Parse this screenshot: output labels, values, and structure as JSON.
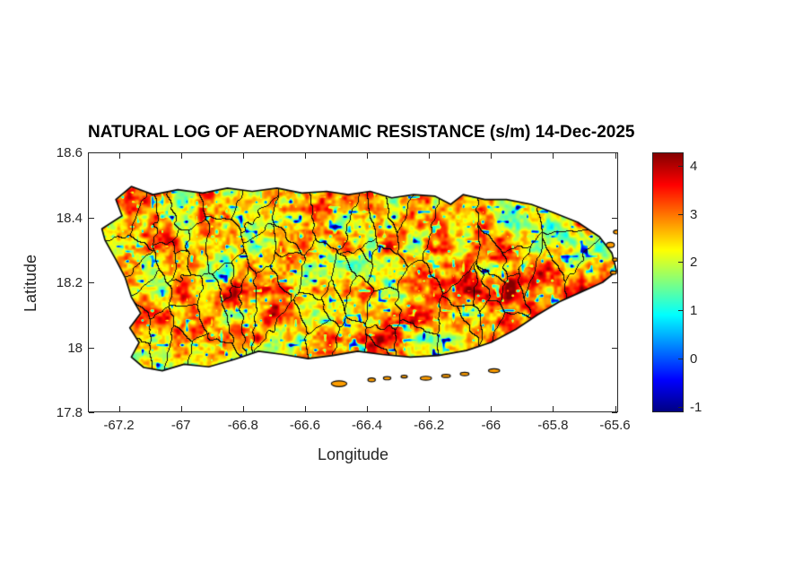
{
  "title": "NATURAL LOG OF AERODYNAMIC RESISTANCE (s/m) 14-Dec-2025",
  "axes": {
    "xlabel": "Longitude",
    "ylabel": "Latitude",
    "xlim": [
      -67.3,
      -65.59
    ],
    "ylim": [
      17.8,
      18.6
    ],
    "xticks": [
      -67.2,
      -67,
      -66.8,
      -66.6,
      -66.4,
      -66.2,
      -66,
      -65.8,
      -65.6
    ],
    "xtick_labels": [
      "-67.2",
      "-67",
      "-66.8",
      "-66.6",
      "-66.4",
      "-66.2",
      "-66",
      "-65.8",
      "-65.6"
    ],
    "yticks": [
      18.6,
      18.4,
      18.2,
      18,
      17.8
    ],
    "ytick_labels": [
      "18.6",
      "18.4",
      "18.2",
      "18",
      "17.8"
    ],
    "axis_color": "#262626",
    "background": "#ffffff"
  },
  "colorbar": {
    "clim": [
      -1.12,
      4.28
    ],
    "ticks": [
      4,
      3,
      2,
      1,
      0,
      -1
    ],
    "tick_labels": [
      "4",
      "3",
      "2",
      "1",
      "0",
      "-1"
    ],
    "colormap": "jet",
    "stops": [
      {
        "t": 0.0,
        "color": "#000080"
      },
      {
        "t": 0.125,
        "color": "#0000ff"
      },
      {
        "t": 0.375,
        "color": "#00ffff"
      },
      {
        "t": 0.625,
        "color": "#ffff00"
      },
      {
        "t": 0.875,
        "color": "#ff0000"
      },
      {
        "t": 1.0,
        "color": "#800000"
      }
    ]
  },
  "chart_data": {
    "type": "heatmap",
    "title": "NATURAL LOG OF AERODYNAMIC RESISTANCE (s/m) 14-Dec-2025",
    "variable": "natural log of aerodynamic resistance",
    "units": "s/m",
    "date": "14-Dec-2025",
    "region": "Puerto Rico (main island with municipality boundaries and offshore cays)",
    "xlabel": "Longitude",
    "ylabel": "Latitude",
    "xlim": [
      -67.3,
      -65.59
    ],
    "ylim": [
      17.8,
      18.6
    ],
    "value_range": [
      -1.12,
      4.28
    ],
    "value_distribution": "mostly 2.2-3.6 (orange/red) with yellow-green patches near 1.5-2.2, cyan patches near 0.9-1.4 and sparse blue speckles below 0",
    "boundary_color": "#0b0b0b",
    "coastline": [
      [
        -67.19,
        18.405
      ],
      [
        -67.21,
        18.455
      ],
      [
        -67.16,
        18.495
      ],
      [
        -67.09,
        18.47
      ],
      [
        -67.01,
        18.485
      ],
      [
        -66.93,
        18.475
      ],
      [
        -66.85,
        18.49
      ],
      [
        -66.77,
        18.48
      ],
      [
        -66.69,
        18.49
      ],
      [
        -66.61,
        18.475
      ],
      [
        -66.53,
        18.48
      ],
      [
        -66.46,
        18.47
      ],
      [
        -66.39,
        18.48
      ],
      [
        -66.32,
        18.46
      ],
      [
        -66.25,
        18.47
      ],
      [
        -66.18,
        18.465
      ],
      [
        -66.13,
        18.44
      ],
      [
        -66.09,
        18.47
      ],
      [
        -66.02,
        18.455
      ],
      [
        -65.95,
        18.455
      ],
      [
        -65.87,
        18.44
      ],
      [
        -65.8,
        18.415
      ],
      [
        -65.72,
        18.385
      ],
      [
        -65.65,
        18.34
      ],
      [
        -65.61,
        18.29
      ],
      [
        -65.595,
        18.235
      ],
      [
        -65.64,
        18.2
      ],
      [
        -65.71,
        18.17
      ],
      [
        -65.78,
        18.14
      ],
      [
        -65.85,
        18.1
      ],
      [
        -65.92,
        18.055
      ],
      [
        -66.0,
        18.015
      ],
      [
        -66.08,
        17.99
      ],
      [
        -66.17,
        17.975
      ],
      [
        -66.26,
        17.97
      ],
      [
        -66.35,
        17.978
      ],
      [
        -66.43,
        17.988
      ],
      [
        -66.51,
        17.975
      ],
      [
        -66.59,
        17.965
      ],
      [
        -66.67,
        17.978
      ],
      [
        -66.75,
        17.988
      ],
      [
        -66.83,
        17.962
      ],
      [
        -66.91,
        17.94
      ],
      [
        -66.99,
        17.948
      ],
      [
        -67.06,
        17.928
      ],
      [
        -67.12,
        17.938
      ],
      [
        -67.16,
        17.97
      ],
      [
        -67.135,
        18.015
      ],
      [
        -67.165,
        18.06
      ],
      [
        -67.13,
        18.105
      ],
      [
        -67.16,
        18.155
      ],
      [
        -67.18,
        18.215
      ],
      [
        -67.21,
        18.27
      ],
      [
        -67.245,
        18.33
      ],
      [
        -67.255,
        18.365
      ]
    ],
    "cays": [
      [
        -66.49,
        17.888,
        0.025,
        0.009
      ],
      [
        -66.385,
        17.9,
        0.012,
        0.006
      ],
      [
        -66.335,
        17.905,
        0.012,
        0.005
      ],
      [
        -66.28,
        17.91,
        0.01,
        0.004
      ],
      [
        -66.21,
        17.905,
        0.018,
        0.006
      ],
      [
        -66.145,
        17.912,
        0.014,
        0.005
      ],
      [
        -66.085,
        17.918,
        0.014,
        0.005
      ],
      [
        -65.99,
        17.928,
        0.018,
        0.006
      ],
      [
        -65.615,
        18.315,
        0.013,
        0.008
      ],
      [
        -65.595,
        18.355,
        0.01,
        0.006
      ],
      [
        -65.605,
        18.23,
        0.01,
        0.005
      ],
      [
        -65.6,
        18.27,
        0.008,
        0.005
      ]
    ],
    "features": [
      [
        -65.79,
        18.33,
        0.1,
        -1.3
      ],
      [
        -65.95,
        18.44,
        0.07,
        -1.0
      ],
      [
        -66.77,
        18.29,
        0.13,
        -0.55
      ],
      [
        -66.43,
        18.26,
        0.07,
        -0.8
      ],
      [
        -66.7,
        17.975,
        0.1,
        -0.75
      ],
      [
        -65.93,
        18.17,
        0.1,
        0.75
      ],
      [
        -66.12,
        18.34,
        0.09,
        0.5
      ],
      [
        -67.05,
        18.33,
        0.06,
        0.5
      ],
      [
        -66.33,
        18.04,
        0.08,
        0.5
      ]
    ],
    "noise": {
      "base": 2.62,
      "octaves": [
        {
          "scale": 26,
          "amp": 0.95,
          "seed": 1
        },
        {
          "scale": 9,
          "amp": 0.75,
          "seed": 2
        },
        {
          "scale": 4.2,
          "amp": 0.45,
          "seed": 3
        }
      ],
      "speckle": {
        "scale": 5.5,
        "threshold": 0.78,
        "strength": 16,
        "seed": 5
      },
      "warp": {
        "scale": 8,
        "amp": 3.5
      }
    },
    "municipalities": {
      "count": 70,
      "seed": 7
    }
  }
}
